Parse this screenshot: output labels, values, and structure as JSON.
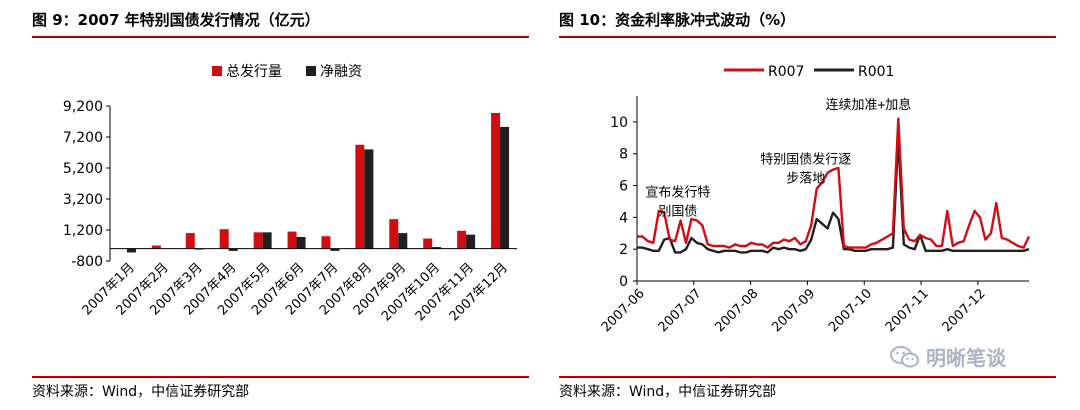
{
  "charts": {
    "left": {
      "title": "图 9：2007 年特别国债发行情况（亿元）",
      "source": "资料来源：Wind，中信证券研究部"
    },
    "right": {
      "title": "图 10：资金利率脉冲式波动（%）",
      "source": "资料来源：Wind，中信证券研究部"
    }
  },
  "watermark": {
    "text": "明晰笔谈",
    "icon": "wechat-icon"
  },
  "chart_data": [
    {
      "type": "bar",
      "categories": [
        "2007年1月",
        "2007年2月",
        "2007年3月",
        "2007年4月",
        "2007年5月",
        "2007年6月",
        "2007年7月",
        "2007年8月",
        "2007年9月",
        "2007年10月",
        "2007年11月",
        "2007年12月"
      ],
      "series": [
        {
          "name": "总发行量",
          "color": "#d10d14",
          "values": [
            0,
            200,
            1000,
            1250,
            1050,
            1100,
            800,
            6700,
            1900,
            650,
            1150,
            8750
          ]
        },
        {
          "name": "净融资",
          "color": "#231f20",
          "values": [
            -250,
            0,
            -50,
            -150,
            1050,
            750,
            -150,
            6400,
            1000,
            100,
            900,
            7850
          ]
        }
      ],
      "yticks": [
        "-800",
        "1,200",
        "3,200",
        "5,200",
        "7,200",
        "9,200"
      ],
      "ylim": [
        -800,
        9200
      ],
      "legend": "top-center",
      "grid": false
    },
    {
      "type": "line",
      "x_labels": [
        "2007-06",
        "2007-07",
        "2007-08",
        "2007-09",
        "2007-10",
        "2007-11",
        "2007-12"
      ],
      "yticks": [
        "0",
        "2",
        "4",
        "6",
        "8",
        "10"
      ],
      "ylim": [
        0,
        11
      ],
      "legend": "top-center",
      "grid": false,
      "series": [
        {
          "name": "R007",
          "color": "#d10d14",
          "values": [
            2.8,
            2.8,
            2.5,
            2.4,
            4.4,
            4.3,
            2.6,
            2.5,
            3.8,
            2.4,
            3.9,
            3.8,
            3.5,
            2.3,
            2.2,
            2.2,
            2.2,
            2.1,
            2.3,
            2.2,
            2.2,
            2.4,
            2.3,
            2.3,
            2.1,
            2.4,
            2.4,
            2.6,
            2.5,
            2.7,
            2.3,
            2.5,
            3.5,
            5.8,
            6.2,
            6.8,
            7.0,
            7.1,
            2.2,
            2.1,
            2.1,
            2.1,
            2.1,
            2.3,
            2.4,
            2.6,
            2.8,
            3.0,
            10.2,
            3.3,
            2.6,
            2.5,
            2.9,
            2.7,
            2.6,
            2.2,
            2.2,
            4.4,
            2.2,
            2.4,
            2.5,
            3.5,
            4.4,
            4.0,
            2.6,
            3.0,
            4.9,
            2.7,
            2.6,
            2.4,
            2.2,
            2.1,
            2.8
          ]
        },
        {
          "name": "R001",
          "color": "#231f20",
          "values": [
            2.1,
            2.1,
            2.0,
            1.9,
            1.9,
            2.6,
            2.7,
            1.8,
            1.8,
            2.0,
            2.7,
            2.4,
            2.3,
            2.0,
            1.9,
            1.8,
            1.9,
            1.9,
            1.9,
            1.8,
            1.8,
            1.9,
            1.9,
            1.9,
            1.8,
            2.1,
            2.0,
            2.1,
            2.0,
            2.0,
            1.9,
            2.0,
            2.6,
            3.9,
            3.6,
            3.3,
            4.3,
            3.9,
            2.0,
            2.0,
            1.9,
            1.9,
            1.9,
            2.0,
            2.0,
            2.0,
            2.0,
            2.1,
            9.0,
            2.3,
            2.1,
            2.0,
            2.9,
            1.9,
            1.9,
            1.9,
            1.9,
            2.0,
            1.9,
            1.9,
            1.9,
            1.9,
            1.9,
            1.9,
            1.9,
            1.9,
            1.9,
            1.9,
            1.9,
            1.9,
            1.9,
            1.9,
            2.0
          ]
        }
      ],
      "annotations": [
        {
          "lines": [
            "宣布发行特",
            "别国债"
          ],
          "x_index": 7.5,
          "y": 5.3
        },
        {
          "lines": [
            "特别国债发行逐",
            "步落地"
          ],
          "x_index": 31,
          "y": 7.4
        },
        {
          "lines": [
            "连续加准+加息"
          ],
          "x_index": 42.5,
          "y": 10.8
        }
      ]
    }
  ]
}
